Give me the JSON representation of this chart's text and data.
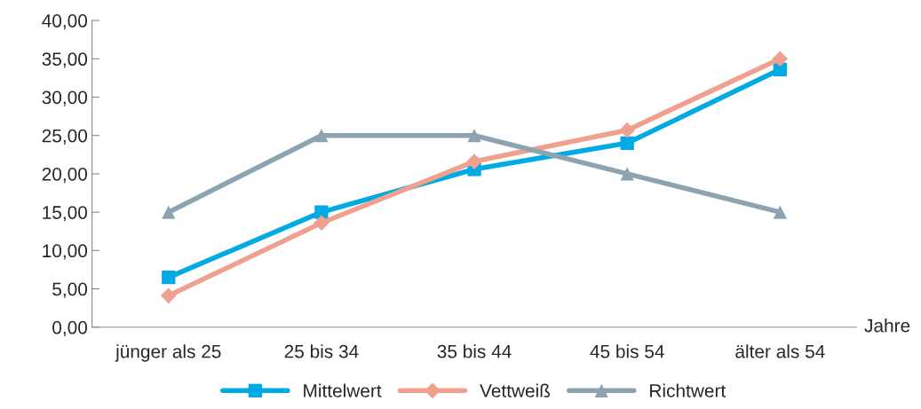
{
  "chart_data": {
    "type": "line",
    "xlabel": "Jahre",
    "categories": [
      "jünger als 25",
      "25 bis 34",
      "35 bis 44",
      "45 bis 54",
      "älter als 54"
    ],
    "series": [
      {
        "name": "Mittelwert",
        "color": "#00aae4",
        "marker": "square",
        "values": [
          6.5,
          15.0,
          20.6,
          24.0,
          33.6
        ]
      },
      {
        "name": "Vettweiß",
        "color": "#f0a08e",
        "marker": "diamond",
        "values": [
          4.1,
          13.6,
          21.6,
          25.7,
          35.0
        ]
      },
      {
        "name": "Richtwert",
        "color": "#8ea3b0",
        "marker": "triangle",
        "values": [
          15,
          25,
          25,
          20,
          15
        ]
      }
    ],
    "ylim": [
      0,
      40
    ],
    "yticks": [
      {
        "value": 0,
        "label": "0,00"
      },
      {
        "value": 5,
        "label": "5,00"
      },
      {
        "value": 10,
        "label": "10,00"
      },
      {
        "value": 15,
        "label": "15,00"
      },
      {
        "value": 20,
        "label": "20,00"
      },
      {
        "value": 25,
        "label": "25,00"
      },
      {
        "value": 30,
        "label": "30,00"
      },
      {
        "value": 35,
        "label": "35,00"
      },
      {
        "value": 40,
        "label": "40,00"
      }
    ],
    "grid": false,
    "legend": "bottom",
    "line_style": "solid"
  }
}
